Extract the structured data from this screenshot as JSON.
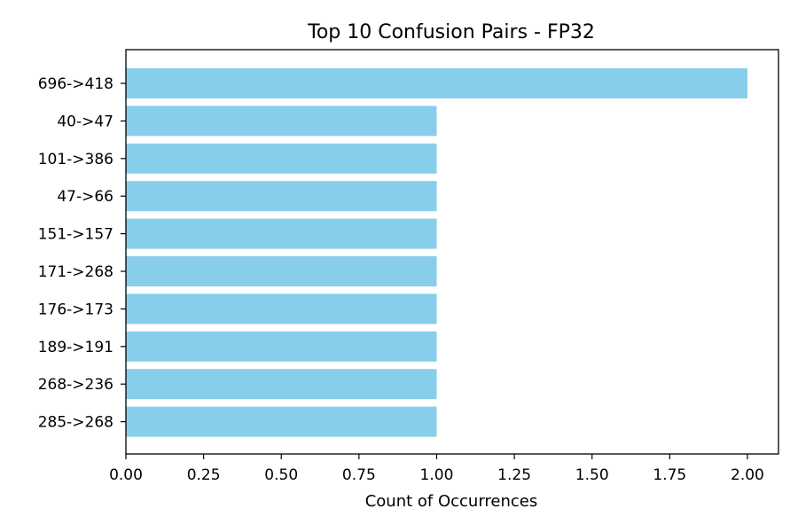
{
  "chart_data": {
    "type": "bar",
    "orientation": "horizontal",
    "title": "Top 10 Confusion Pairs - FP32",
    "xlabel": "Count of Occurrences",
    "ylabel": "",
    "categories": [
      "696->418",
      "40->47",
      "101->386",
      "47->66",
      "151->157",
      "171->268",
      "176->173",
      "189->191",
      "268->236",
      "285->268"
    ],
    "values": [
      2,
      1,
      1,
      1,
      1,
      1,
      1,
      1,
      1,
      1
    ],
    "xlim": [
      0,
      2.1
    ],
    "xticks": [
      "0.00",
      "0.25",
      "0.50",
      "0.75",
      "1.00",
      "1.25",
      "1.50",
      "1.75",
      "2.00"
    ],
    "bar_color": "#87CEEB",
    "grid": false,
    "legend": "none"
  }
}
